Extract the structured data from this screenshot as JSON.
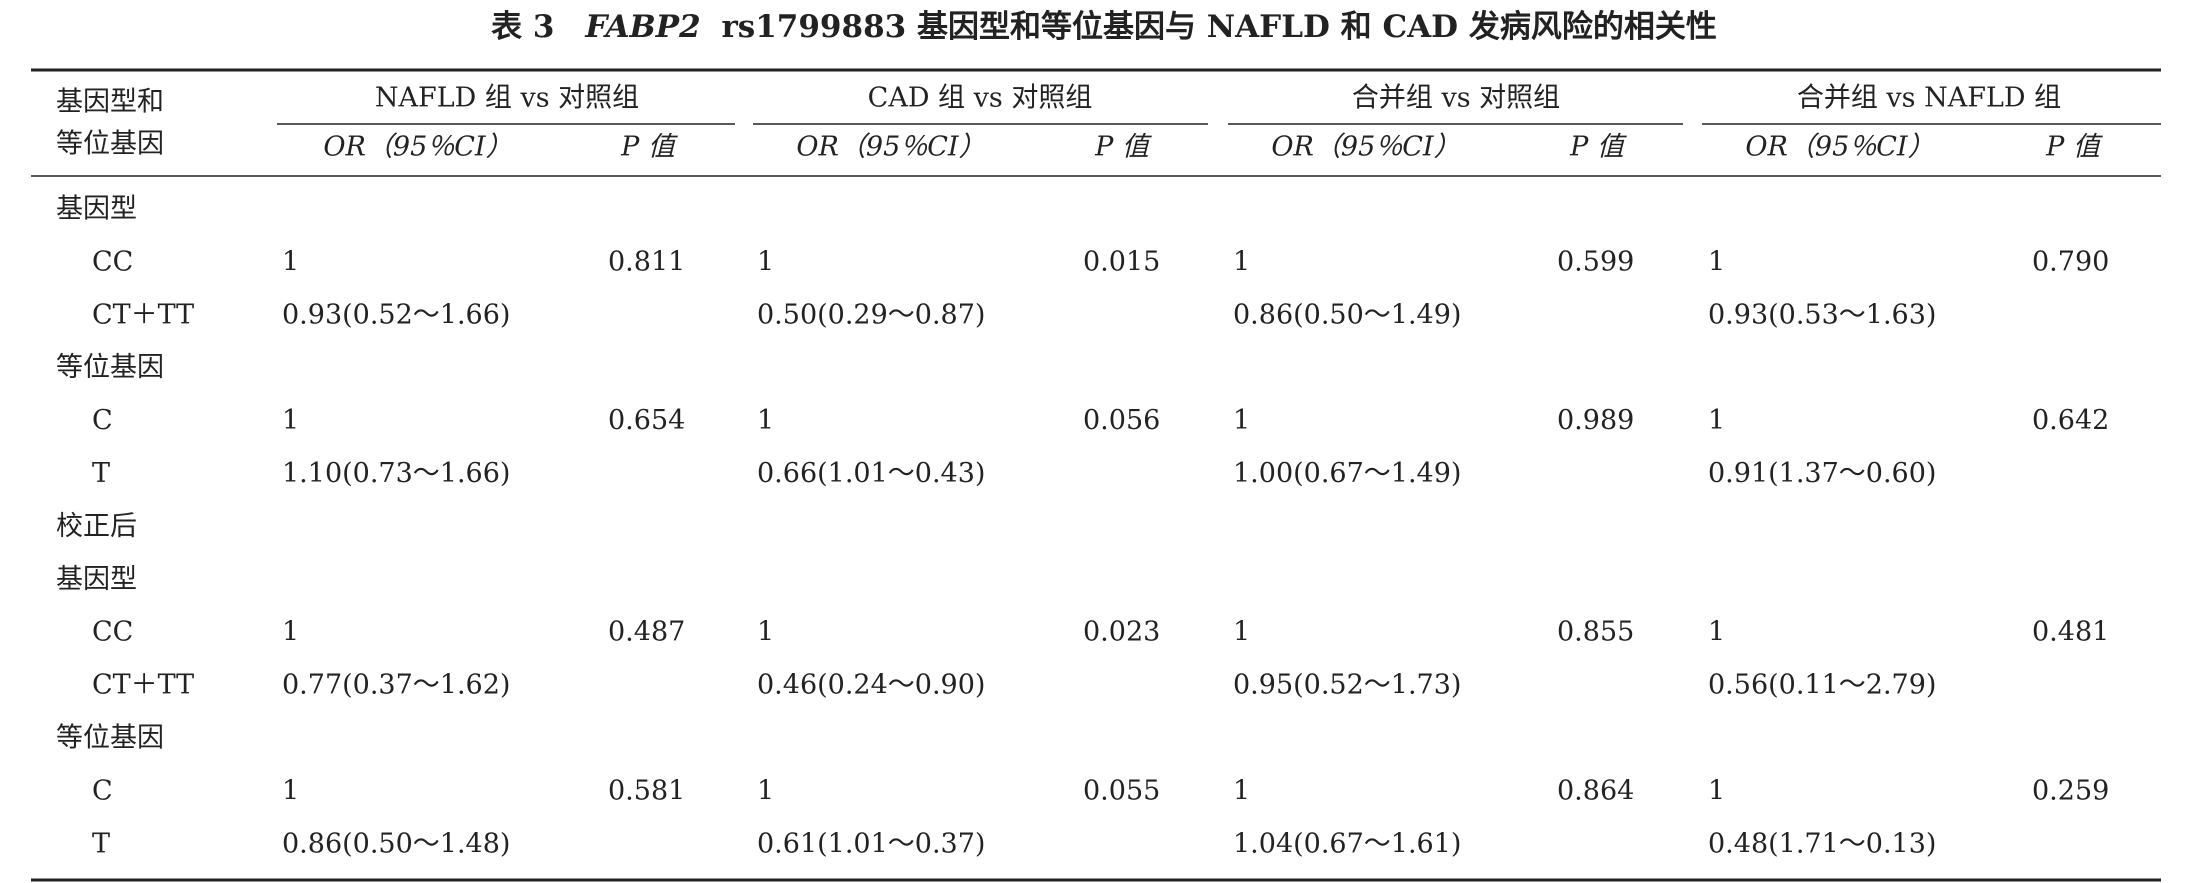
{
  "title": {
    "label": "表 3",
    "gene": "FABP2",
    "text": "rs1799883 基因型和等位基因与 NAFLD 和 CAD 发病风险的相关性"
  },
  "header": {
    "stub": [
      "基因型和",
      "等位基因"
    ],
    "groups": [
      "NAFLD 组 vs 对照组",
      "CAD 组 vs 对照组",
      "合并组 vs 对照组",
      "合并组 vs NAFLD 组"
    ],
    "subheaders": [
      "OR（95％CI）",
      "P 值"
    ]
  },
  "rows": [
    {
      "label": "基因型"
    },
    {
      "label": "CC",
      "cells": [
        [
          "1",
          "0.811"
        ],
        [
          "1",
          "0.015"
        ],
        [
          "1",
          "0.599"
        ],
        [
          "1",
          "0.790"
        ]
      ]
    },
    {
      "label": "CT＋TT",
      "cells": [
        [
          "0.93(0.52～1.66)",
          null
        ],
        [
          "0.50(0.29～0.87)",
          null
        ],
        [
          "0.86(0.50～1.49)",
          null
        ],
        [
          "0.93(0.53～1.63)",
          null
        ]
      ]
    },
    {
      "label": "等位基因"
    },
    {
      "label": "C",
      "cells": [
        [
          "1",
          "0.654"
        ],
        [
          "1",
          "0.056"
        ],
        [
          "1",
          "0.989"
        ],
        [
          "1",
          "0.642"
        ]
      ]
    },
    {
      "label": "T",
      "cells": [
        [
          "1.10(0.73～1.66)",
          null
        ],
        [
          "0.66(1.01～0.43)",
          null
        ],
        [
          "1.00(0.67～1.49)",
          null
        ],
        [
          "0.91(1.37～0.60)",
          null
        ]
      ]
    },
    {
      "label": "校正后"
    },
    {
      "label": "基因型"
    },
    {
      "label": "CC",
      "cells": [
        [
          "1",
          "0.487"
        ],
        [
          "1",
          "0.023"
        ],
        [
          "1",
          "0.855"
        ],
        [
          "1",
          "0.481"
        ]
      ]
    },
    {
      "label": "CT＋TT",
      "cells": [
        [
          "0.77(0.37～1.62)",
          null
        ],
        [
          "0.46(0.24～0.90)",
          null
        ],
        [
          "0.95(0.52～1.73)",
          null
        ],
        [
          "0.56(0.11～2.79)",
          null
        ]
      ]
    },
    {
      "label": "等位基因"
    },
    {
      "label": "C",
      "cells": [
        [
          "1",
          "0.581"
        ],
        [
          "1",
          "0.055"
        ],
        [
          "1",
          "0.864"
        ],
        [
          "1",
          "0.259"
        ]
      ]
    },
    {
      "label": "T",
      "cells": [
        [
          "0.86(0.50～1.48)",
          null
        ],
        [
          "0.61(1.01～0.37)",
          null
        ],
        [
          "1.04(0.67～1.61)",
          null
        ],
        [
          "0.48(1.71～0.13)",
          null
        ]
      ]
    }
  ]
}
